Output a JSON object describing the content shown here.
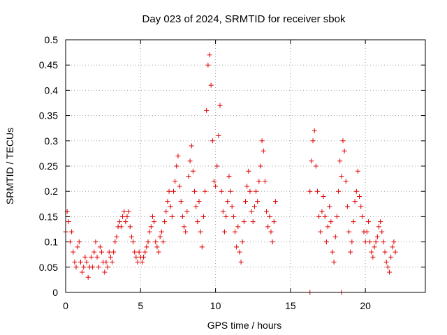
{
  "chart_data": {
    "type": "scatter",
    "title": "Day 023 of 2024, SRMTID for receiver sbok",
    "xlabel": "GPS time / hours",
    "ylabel": "SRMTID / TECUs",
    "xlim": [
      0,
      24
    ],
    "ylim": [
      0,
      0.5
    ],
    "xticks": [
      0,
      5,
      10,
      15,
      20
    ],
    "yticks": [
      0,
      0.05,
      0.1,
      0.15,
      0.2,
      0.25,
      0.3,
      0.35,
      0.4,
      0.45,
      0.5
    ],
    "xtick_labels": [
      "0",
      "5",
      "10",
      "15",
      "20"
    ],
    "ytick_labels": [
      "0",
      "0.05",
      "0.1",
      "0.15",
      "0.2",
      "0.25",
      "0.3",
      "0.35",
      "0.4",
      "0.45",
      "0.5"
    ],
    "grid": true,
    "marker": "+",
    "color": "#e00000",
    "series": [
      {
        "name": "SRMTID",
        "points": [
          [
            0.0,
            0.12
          ],
          [
            0.1,
            0.16
          ],
          [
            0.2,
            0.14
          ],
          [
            0.3,
            0.1
          ],
          [
            0.4,
            0.12
          ],
          [
            0.5,
            0.08
          ],
          [
            0.6,
            0.06
          ],
          [
            0.7,
            0.05
          ],
          [
            0.8,
            0.09
          ],
          [
            0.9,
            0.1
          ],
          [
            1.0,
            0.06
          ],
          [
            1.1,
            0.04
          ],
          [
            1.2,
            0.05
          ],
          [
            1.3,
            0.07
          ],
          [
            1.4,
            0.06
          ],
          [
            1.5,
            0.03
          ],
          [
            1.6,
            0.05
          ],
          [
            1.7,
            0.07
          ],
          [
            1.8,
            0.05
          ],
          [
            1.9,
            0.08
          ],
          [
            2.0,
            0.1
          ],
          [
            2.1,
            0.07
          ],
          [
            2.2,
            0.05
          ],
          [
            2.3,
            0.09
          ],
          [
            2.4,
            0.08
          ],
          [
            2.5,
            0.06
          ],
          [
            2.6,
            0.04
          ],
          [
            2.7,
            0.06
          ],
          [
            2.8,
            0.05
          ],
          [
            2.9,
            0.08
          ],
          [
            3.0,
            0.07
          ],
          [
            3.1,
            0.06
          ],
          [
            3.2,
            0.08
          ],
          [
            3.3,
            0.1
          ],
          [
            3.4,
            0.11
          ],
          [
            3.5,
            0.13
          ],
          [
            3.6,
            0.14
          ],
          [
            3.7,
            0.13
          ],
          [
            3.8,
            0.15
          ],
          [
            3.9,
            0.16
          ],
          [
            4.0,
            0.14
          ],
          [
            4.1,
            0.15
          ],
          [
            4.2,
            0.16
          ],
          [
            4.3,
            0.13
          ],
          [
            4.4,
            0.11
          ],
          [
            4.5,
            0.1
          ],
          [
            4.6,
            0.08
          ],
          [
            4.7,
            0.07
          ],
          [
            4.8,
            0.06
          ],
          [
            4.9,
            0.08
          ],
          [
            5.0,
            0.07
          ],
          [
            5.1,
            0.06
          ],
          [
            5.2,
            0.07
          ],
          [
            5.3,
            0.08
          ],
          [
            5.4,
            0.09
          ],
          [
            5.5,
            0.1
          ],
          [
            5.6,
            0.12
          ],
          [
            5.7,
            0.13
          ],
          [
            5.8,
            0.15
          ],
          [
            5.9,
            0.14
          ],
          [
            6.0,
            0.1
          ],
          [
            6.1,
            0.09
          ],
          [
            6.2,
            0.08
          ],
          [
            6.3,
            0.11
          ],
          [
            6.4,
            0.12
          ],
          [
            6.5,
            0.1
          ],
          [
            6.6,
            0.14
          ],
          [
            6.7,
            0.16
          ],
          [
            6.8,
            0.18
          ],
          [
            6.9,
            0.2
          ],
          [
            7.0,
            0.17
          ],
          [
            7.1,
            0.15
          ],
          [
            7.2,
            0.2
          ],
          [
            7.3,
            0.22
          ],
          [
            7.4,
            0.25
          ],
          [
            7.5,
            0.27
          ],
          [
            7.6,
            0.21
          ],
          [
            7.7,
            0.18
          ],
          [
            7.8,
            0.15
          ],
          [
            7.9,
            0.13
          ],
          [
            8.0,
            0.12
          ],
          [
            8.1,
            0.16
          ],
          [
            8.2,
            0.23
          ],
          [
            8.3,
            0.26
          ],
          [
            8.4,
            0.29
          ],
          [
            8.5,
            0.24
          ],
          [
            8.6,
            0.2
          ],
          [
            8.7,
            0.17
          ],
          [
            8.8,
            0.14
          ],
          [
            8.9,
            0.18
          ],
          [
            9.0,
            0.12
          ],
          [
            9.1,
            0.09
          ],
          [
            9.2,
            0.15
          ],
          [
            9.3,
            0.2
          ],
          [
            9.4,
            0.36
          ],
          [
            9.5,
            0.45
          ],
          [
            9.6,
            0.47
          ],
          [
            9.7,
            0.41
          ],
          [
            9.8,
            0.3
          ],
          [
            9.9,
            0.22
          ],
          [
            10.0,
            0.21
          ],
          [
            10.1,
            0.25
          ],
          [
            10.2,
            0.31
          ],
          [
            10.3,
            0.37
          ],
          [
            10.4,
            0.2
          ],
          [
            10.5,
            0.16
          ],
          [
            10.6,
            0.12
          ],
          [
            10.7,
            0.15
          ],
          [
            10.8,
            0.18
          ],
          [
            10.9,
            0.23
          ],
          [
            11.0,
            0.2
          ],
          [
            11.1,
            0.17
          ],
          [
            11.2,
            0.15
          ],
          [
            11.3,
            0.12
          ],
          [
            11.4,
            0.09
          ],
          [
            11.5,
            0.13
          ],
          [
            11.6,
            0.08
          ],
          [
            11.7,
            0.06
          ],
          [
            11.8,
            0.1
          ],
          [
            11.9,
            0.14
          ],
          [
            12.0,
            0.18
          ],
          [
            12.1,
            0.21
          ],
          [
            12.2,
            0.24
          ],
          [
            12.3,
            0.2
          ],
          [
            12.4,
            0.16
          ],
          [
            12.5,
            0.14
          ],
          [
            12.6,
            0.17
          ],
          [
            12.7,
            0.2
          ],
          [
            12.8,
            0.18
          ],
          [
            12.9,
            0.22
          ],
          [
            13.0,
            0.25
          ],
          [
            13.1,
            0.3
          ],
          [
            13.2,
            0.28
          ],
          [
            13.3,
            0.22
          ],
          [
            13.4,
            0.16
          ],
          [
            13.5,
            0.13
          ],
          [
            13.6,
            0.15
          ],
          [
            13.7,
            0.12
          ],
          [
            13.8,
            0.1
          ],
          [
            13.9,
            0.14
          ],
          [
            14.0,
            0.18
          ],
          [
            16.3,
            0.0
          ],
          [
            16.3,
            0.2
          ],
          [
            16.4,
            0.26
          ],
          [
            16.5,
            0.3
          ],
          [
            16.6,
            0.32
          ],
          [
            16.7,
            0.25
          ],
          [
            16.8,
            0.2
          ],
          [
            16.9,
            0.15
          ],
          [
            17.0,
            0.12
          ],
          [
            17.1,
            0.16
          ],
          [
            17.2,
            0.19
          ],
          [
            17.3,
            0.15
          ],
          [
            17.4,
            0.1
          ],
          [
            17.5,
            0.13
          ],
          [
            17.6,
            0.17
          ],
          [
            17.7,
            0.14
          ],
          [
            17.8,
            0.08
          ],
          [
            17.9,
            0.06
          ],
          [
            18.0,
            0.11
          ],
          [
            18.1,
            0.15
          ],
          [
            18.2,
            0.2
          ],
          [
            18.3,
            0.26
          ],
          [
            18.4,
            0.0
          ],
          [
            18.4,
            0.23
          ],
          [
            18.5,
            0.3
          ],
          [
            18.6,
            0.28
          ],
          [
            18.7,
            0.22
          ],
          [
            18.8,
            0.17
          ],
          [
            18.9,
            0.12
          ],
          [
            19.0,
            0.08
          ],
          [
            19.1,
            0.1
          ],
          [
            19.2,
            0.14
          ],
          [
            19.3,
            0.18
          ],
          [
            19.4,
            0.2
          ],
          [
            19.5,
            0.24
          ],
          [
            19.6,
            0.19
          ],
          [
            19.7,
            0.17
          ],
          [
            19.8,
            0.15
          ],
          [
            19.9,
            0.12
          ],
          [
            20.0,
            0.1
          ],
          [
            20.1,
            0.12
          ],
          [
            20.2,
            0.14
          ],
          [
            20.3,
            0.1
          ],
          [
            20.4,
            0.08
          ],
          [
            20.5,
            0.07
          ],
          [
            20.6,
            0.09
          ],
          [
            20.7,
            0.1
          ],
          [
            20.8,
            0.11
          ],
          [
            20.9,
            0.13
          ],
          [
            21.0,
            0.14
          ],
          [
            21.1,
            0.12
          ],
          [
            21.2,
            0.1
          ],
          [
            21.3,
            0.08
          ],
          [
            21.4,
            0.06
          ],
          [
            21.5,
            0.05
          ],
          [
            21.6,
            0.04
          ],
          [
            21.7,
            0.07
          ],
          [
            21.8,
            0.09
          ],
          [
            21.9,
            0.1
          ],
          [
            22.0,
            0.08
          ]
        ]
      }
    ]
  }
}
